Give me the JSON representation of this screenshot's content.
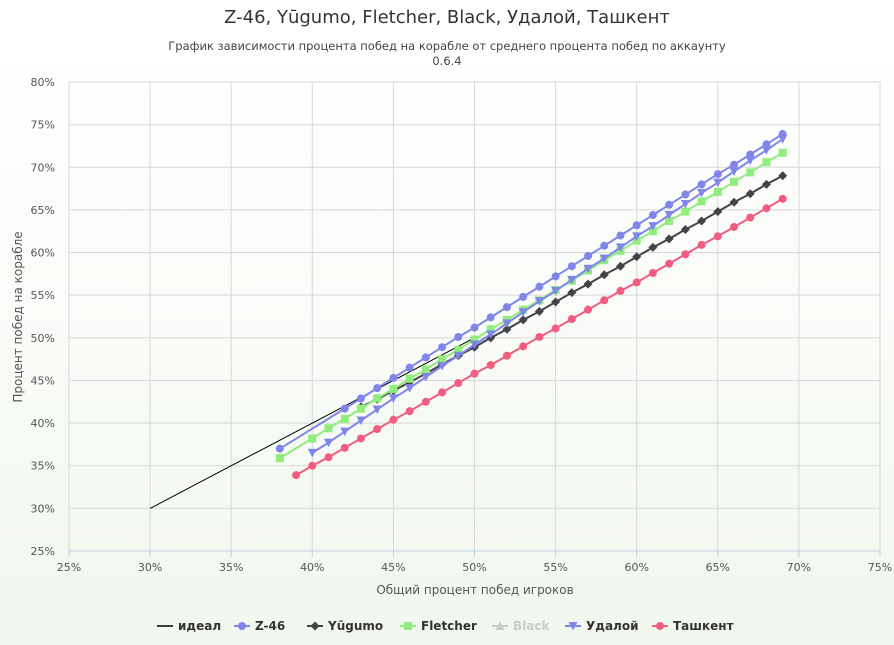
{
  "chart_data": {
    "type": "line",
    "title": "Z-46, Yūgumo, Fletcher, Black, Удалой, Ташкент",
    "subtitle": [
      "График зависимости процента побед на корабле от среднего процента побед по аккаунту",
      "0.6.4"
    ],
    "xlabel": "Общий процент побед игроков",
    "ylabel": "Процент побед на корабле",
    "xlim": [
      25,
      75
    ],
    "ylim": [
      25,
      80
    ],
    "xticks": [
      "25%",
      "30%",
      "35%",
      "40%",
      "45%",
      "50%",
      "55%",
      "60%",
      "65%",
      "70%",
      "75%"
    ],
    "yticks": [
      "25%",
      "30%",
      "35%",
      "40%",
      "45%",
      "50%",
      "55%",
      "60%",
      "65%",
      "70%",
      "75%",
      "80%"
    ],
    "grid": true,
    "legend_position": "bottom",
    "series": [
      {
        "name": "идеал",
        "color": "#000000",
        "marker": "none",
        "visible": true,
        "points": [
          [
            30,
            30
          ],
          [
            50,
            50
          ]
        ]
      },
      {
        "name": "Z-46",
        "color": "#8085e9",
        "marker": "circle",
        "visible": true,
        "points": [
          [
            38,
            37.0
          ],
          [
            42,
            41.7
          ],
          [
            43,
            42.9
          ],
          [
            44,
            44.1
          ],
          [
            45,
            45.3
          ],
          [
            46,
            46.5
          ],
          [
            47,
            47.7
          ],
          [
            48,
            48.9
          ],
          [
            49,
            50.1
          ],
          [
            50,
            51.2
          ],
          [
            51,
            52.4
          ],
          [
            52,
            53.6
          ],
          [
            53,
            54.8
          ],
          [
            54,
            56.0
          ],
          [
            55,
            57.2
          ],
          [
            56,
            58.4
          ],
          [
            57,
            59.6
          ],
          [
            58,
            60.8
          ],
          [
            59,
            62.0
          ],
          [
            60,
            63.2
          ],
          [
            61,
            64.4
          ],
          [
            62,
            65.6
          ],
          [
            63,
            66.8
          ],
          [
            64,
            68.0
          ],
          [
            65,
            69.2
          ],
          [
            66,
            70.3
          ],
          [
            67,
            71.5
          ],
          [
            68,
            72.7
          ],
          [
            69,
            73.9
          ]
        ]
      },
      {
        "name": "Yūgumo",
        "color": "#434348",
        "marker": "diamond",
        "visible": true,
        "points": [
          [
            43,
            41.9
          ],
          [
            44,
            42.8
          ],
          [
            45,
            43.8
          ],
          [
            46,
            44.8
          ],
          [
            47,
            45.8
          ],
          [
            48,
            46.9
          ],
          [
            49,
            47.9
          ],
          [
            50,
            48.9
          ],
          [
            51,
            50.0
          ],
          [
            52,
            51.0
          ],
          [
            53,
            52.1
          ],
          [
            54,
            53.1
          ],
          [
            55,
            54.2
          ],
          [
            56,
            55.3
          ],
          [
            57,
            56.3
          ],
          [
            58,
            57.4
          ],
          [
            59,
            58.4
          ],
          [
            60,
            59.5
          ],
          [
            61,
            60.6
          ],
          [
            62,
            61.6
          ],
          [
            63,
            62.7
          ],
          [
            64,
            63.7
          ],
          [
            65,
            64.8
          ],
          [
            66,
            65.9
          ],
          [
            67,
            66.9
          ],
          [
            68,
            68.0
          ],
          [
            69,
            69.0
          ]
        ]
      },
      {
        "name": "Fletcher",
        "color": "#90ed7d",
        "marker": "square",
        "visible": true,
        "points": [
          [
            38,
            35.9
          ],
          [
            40,
            38.2
          ],
          [
            41,
            39.4
          ],
          [
            42,
            40.5
          ],
          [
            43,
            41.7
          ],
          [
            44,
            42.9
          ],
          [
            45,
            44.0
          ],
          [
            46,
            45.2
          ],
          [
            47,
            46.3
          ],
          [
            48,
            47.5
          ],
          [
            49,
            48.6
          ],
          [
            50,
            49.8
          ],
          [
            51,
            51.0
          ],
          [
            52,
            52.1
          ],
          [
            53,
            53.3
          ],
          [
            54,
            54.4
          ],
          [
            55,
            55.6
          ],
          [
            56,
            56.7
          ],
          [
            57,
            57.9
          ],
          [
            58,
            59.1
          ],
          [
            59,
            60.2
          ],
          [
            60,
            61.4
          ],
          [
            61,
            62.5
          ],
          [
            62,
            63.7
          ],
          [
            63,
            64.8
          ],
          [
            64,
            66.0
          ],
          [
            65,
            67.1
          ],
          [
            66,
            68.3
          ],
          [
            67,
            69.4
          ],
          [
            68,
            70.6
          ],
          [
            69,
            71.7
          ]
        ]
      },
      {
        "name": "Black",
        "color": "#cccccc",
        "marker": "triangle",
        "visible": false,
        "points": []
      },
      {
        "name": "Удалой",
        "color": "#8085e9",
        "marker": "triangle-down",
        "visible": true,
        "points": [
          [
            40,
            36.5
          ],
          [
            41,
            37.7
          ],
          [
            42,
            39.0
          ],
          [
            43,
            40.3
          ],
          [
            44,
            41.6
          ],
          [
            45,
            42.9
          ],
          [
            46,
            44.1
          ],
          [
            47,
            45.4
          ],
          [
            48,
            46.7
          ],
          [
            49,
            47.9
          ],
          [
            50,
            49.2
          ],
          [
            51,
            50.4
          ],
          [
            52,
            51.7
          ],
          [
            53,
            53.0
          ],
          [
            54,
            54.3
          ],
          [
            55,
            55.5
          ],
          [
            56,
            56.8
          ],
          [
            57,
            58.1
          ],
          [
            58,
            59.3
          ],
          [
            59,
            60.6
          ],
          [
            60,
            61.9
          ],
          [
            61,
            63.1
          ],
          [
            62,
            64.4
          ],
          [
            63,
            65.7
          ],
          [
            64,
            67.0
          ],
          [
            65,
            68.2
          ],
          [
            66,
            69.5
          ],
          [
            67,
            70.8
          ],
          [
            68,
            72.0
          ],
          [
            69,
            73.3
          ]
        ]
      },
      {
        "name": "Ташкент",
        "color": "#f15c80",
        "marker": "circle",
        "visible": true,
        "points": [
          [
            39,
            33.9
          ],
          [
            40,
            35.0
          ],
          [
            41,
            36.0
          ],
          [
            42,
            37.1
          ],
          [
            43,
            38.2
          ],
          [
            44,
            39.3
          ],
          [
            45,
            40.4
          ],
          [
            46,
            41.4
          ],
          [
            47,
            42.5
          ],
          [
            48,
            43.6
          ],
          [
            49,
            44.7
          ],
          [
            50,
            45.8
          ],
          [
            51,
            46.8
          ],
          [
            52,
            47.9
          ],
          [
            53,
            49.0
          ],
          [
            54,
            50.1
          ],
          [
            55,
            51.1
          ],
          [
            56,
            52.2
          ],
          [
            57,
            53.3
          ],
          [
            58,
            54.4
          ],
          [
            59,
            55.5
          ],
          [
            60,
            56.5
          ],
          [
            61,
            57.6
          ],
          [
            62,
            58.7
          ],
          [
            63,
            59.8
          ],
          [
            64,
            60.9
          ],
          [
            65,
            61.9
          ],
          [
            66,
            63.0
          ],
          [
            67,
            64.1
          ],
          [
            68,
            65.2
          ],
          [
            69,
            66.3
          ]
        ]
      }
    ]
  }
}
